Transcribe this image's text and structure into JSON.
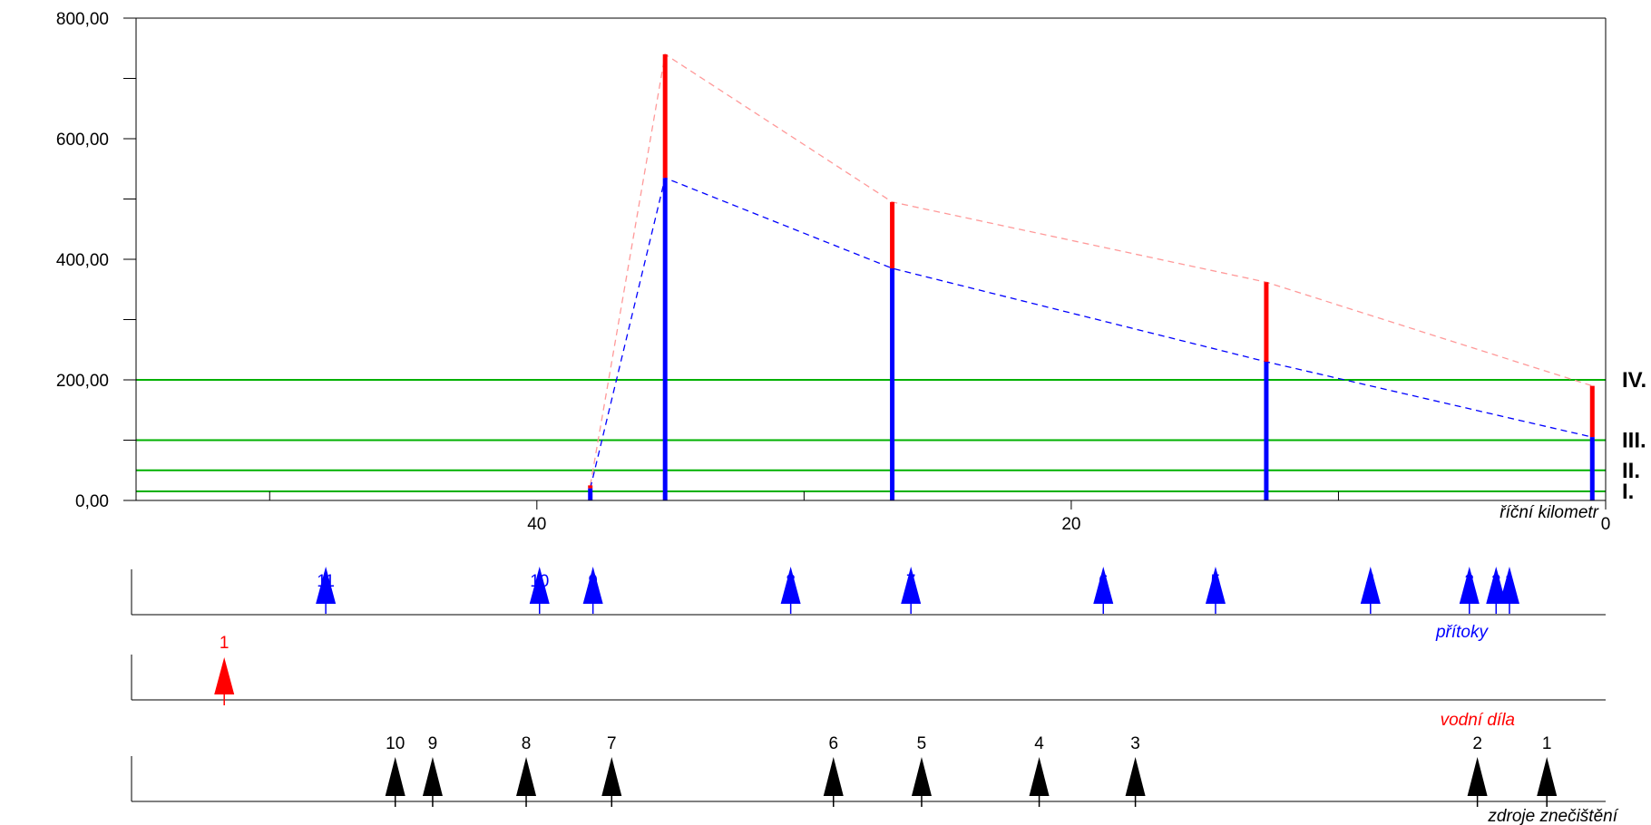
{
  "chart_data": {
    "type": "line",
    "x_axis": {
      "label": "říční kilometr",
      "range": [
        55,
        0
      ],
      "reversed": true,
      "ticks": [
        {
          "value": 40,
          "label": "40"
        },
        {
          "value": 20,
          "label": "20"
        },
        {
          "value": 0,
          "label": "0"
        }
      ],
      "minor_ticks": [
        50,
        30,
        10
      ]
    },
    "y_axis": {
      "range": [
        0,
        800
      ],
      "ticks": [
        {
          "value": 0,
          "label": "0,00"
        },
        {
          "value": 200,
          "label": "200,00"
        },
        {
          "value": 400,
          "label": "400,00"
        },
        {
          "value": 600,
          "label": "600,00"
        },
        {
          "value": 800,
          "label": "800,00"
        }
      ],
      "minor_ticks": [
        100,
        300,
        500,
        700
      ]
    },
    "class_limits": [
      {
        "value": 15,
        "label": "I."
      },
      {
        "value": 50,
        "label": "II."
      },
      {
        "value": 100,
        "label": "III."
      },
      {
        "value": 200,
        "label": "IV."
      }
    ],
    "measurements": [
      {
        "km": 38.0,
        "lower": 20,
        "upper": 25
      },
      {
        "km": 35.2,
        "lower": 535,
        "upper": 740
      },
      {
        "km": 26.7,
        "lower": 385,
        "upper": 495
      },
      {
        "km": 12.7,
        "lower": 230,
        "upper": 362
      },
      {
        "km": 0.5,
        "lower": 105,
        "upper": 190
      }
    ],
    "colors": {
      "upper": "#ff0000",
      "lower": "#0000ff",
      "upper_dashed": "#ff9999",
      "limit_lines": "#00b000",
      "inflow": "#0000ff",
      "structure": "#ff0000",
      "pollution": "#000000"
    },
    "tributaries": {
      "label": "přítoky",
      "items": [
        {
          "id": "11",
          "km": 47.9
        },
        {
          "id": "10",
          "km": 39.9
        },
        {
          "id": "9",
          "km": 37.9
        },
        {
          "id": "8",
          "km": 30.5
        },
        {
          "id": "7",
          "km": 26.0
        },
        {
          "id": "6",
          "km": 18.8
        },
        {
          "id": "5",
          "km": 14.6
        },
        {
          "id": "4",
          "km": 8.8
        },
        {
          "id": "3",
          "km": 5.1
        },
        {
          "id": "2",
          "km": 4.1
        },
        {
          "id": "1",
          "km": 3.6
        }
      ]
    },
    "water_structures": {
      "label": "vodní díla",
      "items": [
        {
          "id": "1",
          "km": 51.7
        }
      ]
    },
    "pollution_sources": {
      "label": "zdroje znečištění",
      "items": [
        {
          "id": "10",
          "km": 45.3
        },
        {
          "id": "9",
          "km": 43.9
        },
        {
          "id": "8",
          "km": 40.4
        },
        {
          "id": "7",
          "km": 37.2
        },
        {
          "id": "6",
          "km": 28.9
        },
        {
          "id": "5",
          "km": 25.6
        },
        {
          "id": "4",
          "km": 21.2
        },
        {
          "id": "3",
          "km": 17.6
        },
        {
          "id": "2",
          "km": 4.8
        },
        {
          "id": "1",
          "km": 2.2
        }
      ]
    }
  }
}
